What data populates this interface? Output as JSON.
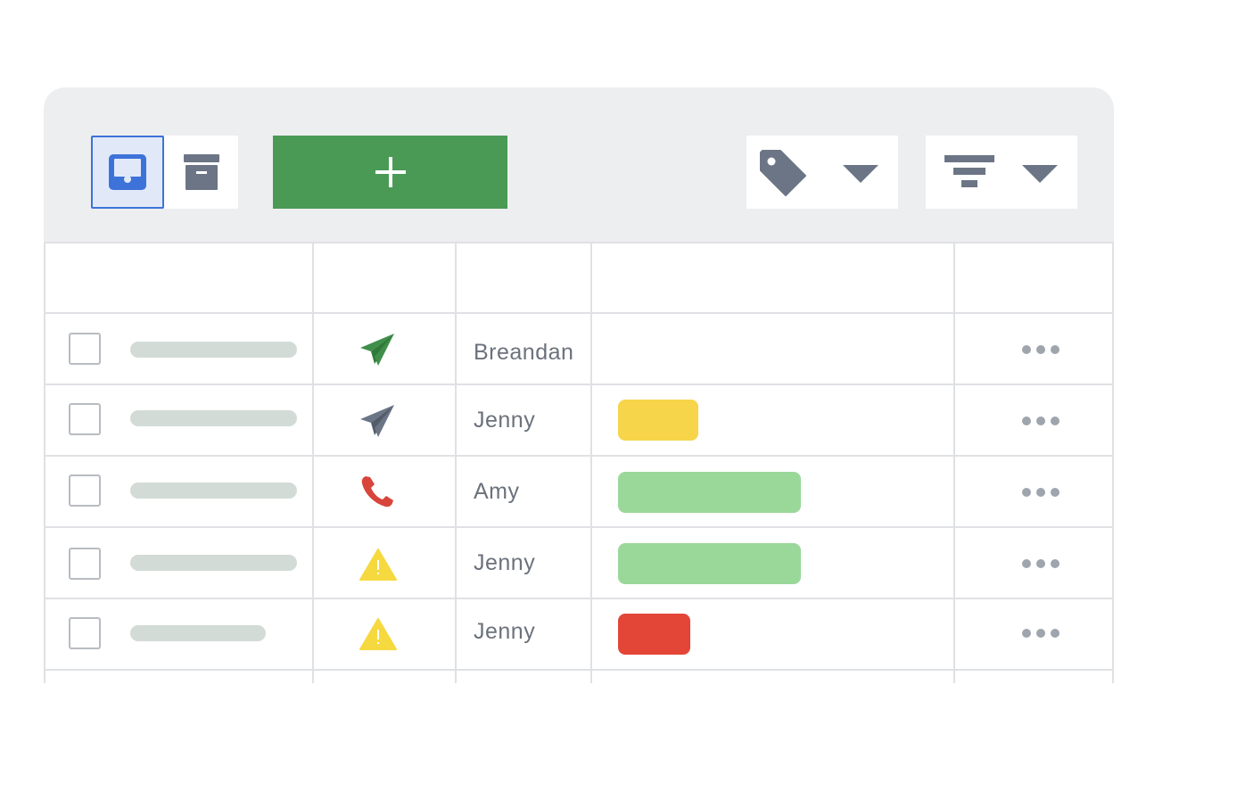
{
  "toolbar": {
    "view_toggle": {
      "selected": "inbox"
    },
    "add_button": {
      "label": "+"
    },
    "tag_dropdown": {
      "icon": "tag-icon"
    },
    "filter_dropdown": {
      "icon": "filter-icon"
    }
  },
  "colors": {
    "accent_blue": "#3d72d9",
    "add_green": "#4a9a55",
    "icon_gray": "#6b7585",
    "sent_green": "#3f8f4a",
    "call_red": "#d8453b",
    "warn_yellow": "#f5d93f",
    "pill_yellow": "#f6d54b",
    "pill_green": "#9ad89a",
    "pill_red": "#e34537"
  },
  "rows": [
    {
      "name": "Breandan",
      "status_icon": "paper-plane-green-icon",
      "pill": "none"
    },
    {
      "name": "Jenny",
      "status_icon": "paper-plane-gray-icon",
      "pill": "yellow"
    },
    {
      "name": "Amy",
      "status_icon": "phone-icon",
      "pill": "green"
    },
    {
      "name": "Jenny",
      "status_icon": "warning-icon",
      "pill": "green"
    },
    {
      "name": "Jenny",
      "status_icon": "warning-icon",
      "pill": "red"
    }
  ]
}
